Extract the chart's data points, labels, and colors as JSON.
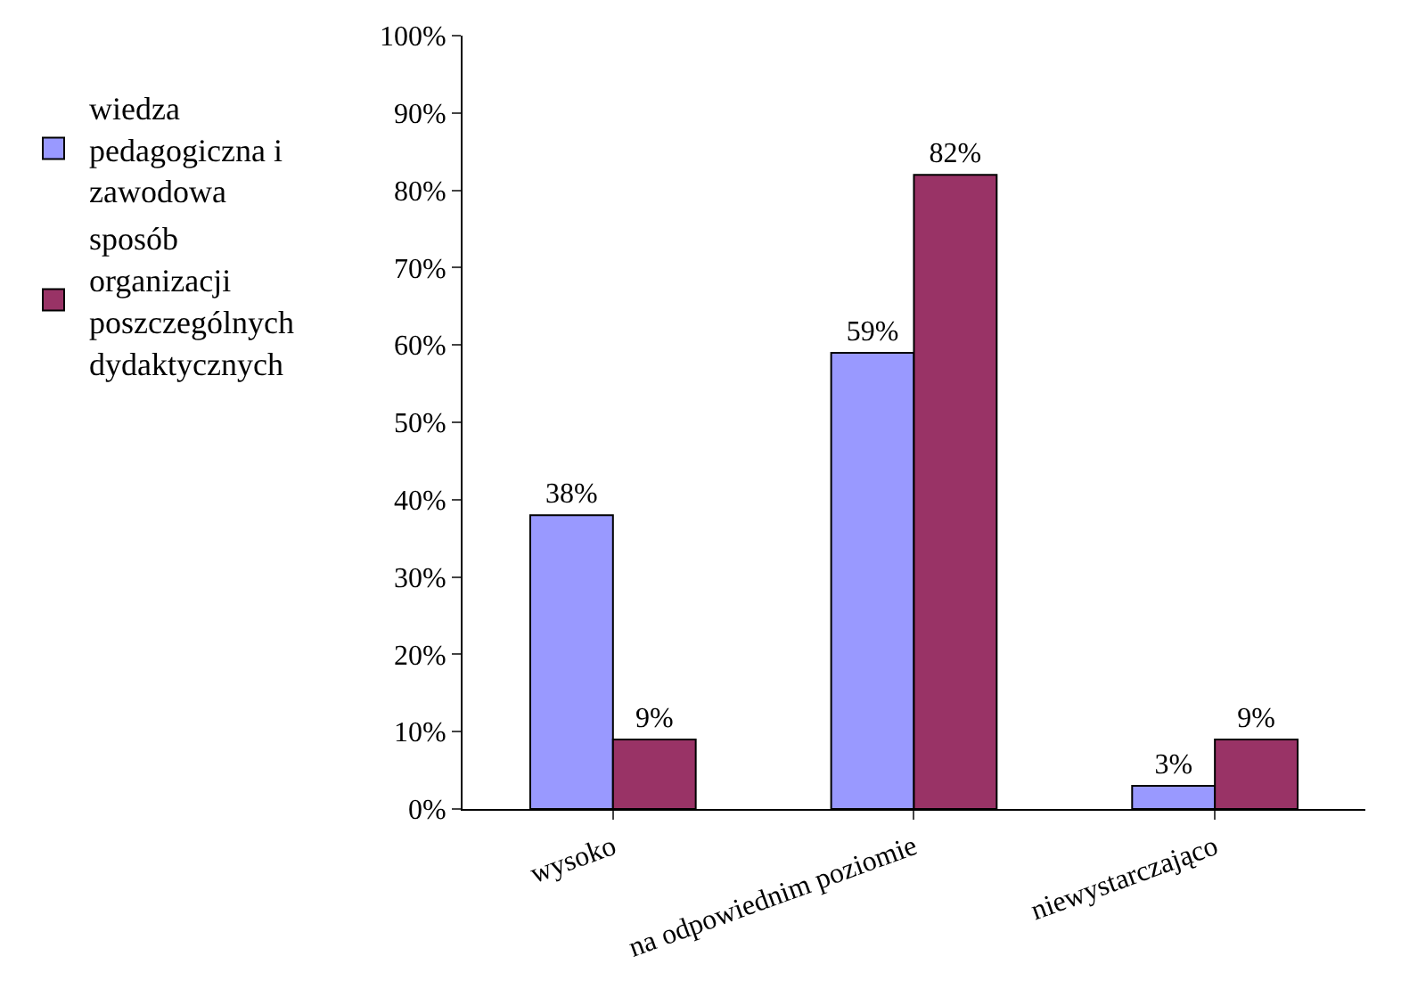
{
  "chart_data": {
    "type": "bar",
    "categories": [
      "wysoko",
      "na odpowiednim poziomie",
      "niewystarczająco"
    ],
    "series": [
      {
        "name": "wiedza pedagogiczna i zawodowa",
        "color": "#9999ff",
        "values": [
          38,
          59,
          3
        ],
        "value_labels": [
          "38%",
          "59%",
          "3%"
        ]
      },
      {
        "name": "sposób organizacji poszczególnych dydaktycznych",
        "color": "#993366",
        "values": [
          9,
          82,
          9
        ],
        "value_labels": [
          "9%",
          "82%",
          "9%"
        ]
      }
    ],
    "ylim": [
      0,
      100
    ],
    "yticks": [
      {
        "value": 0,
        "label": "0%"
      },
      {
        "value": 10,
        "label": "10%"
      },
      {
        "value": 20,
        "label": "20%"
      },
      {
        "value": 30,
        "label": "30%"
      },
      {
        "value": 40,
        "label": "40%"
      },
      {
        "value": 50,
        "label": "50%"
      },
      {
        "value": 60,
        "label": "60%"
      },
      {
        "value": 70,
        "label": "70%"
      },
      {
        "value": 80,
        "label": "80%"
      },
      {
        "value": 90,
        "label": "90%"
      },
      {
        "value": 100,
        "label": "100%"
      }
    ],
    "legend": "left"
  }
}
